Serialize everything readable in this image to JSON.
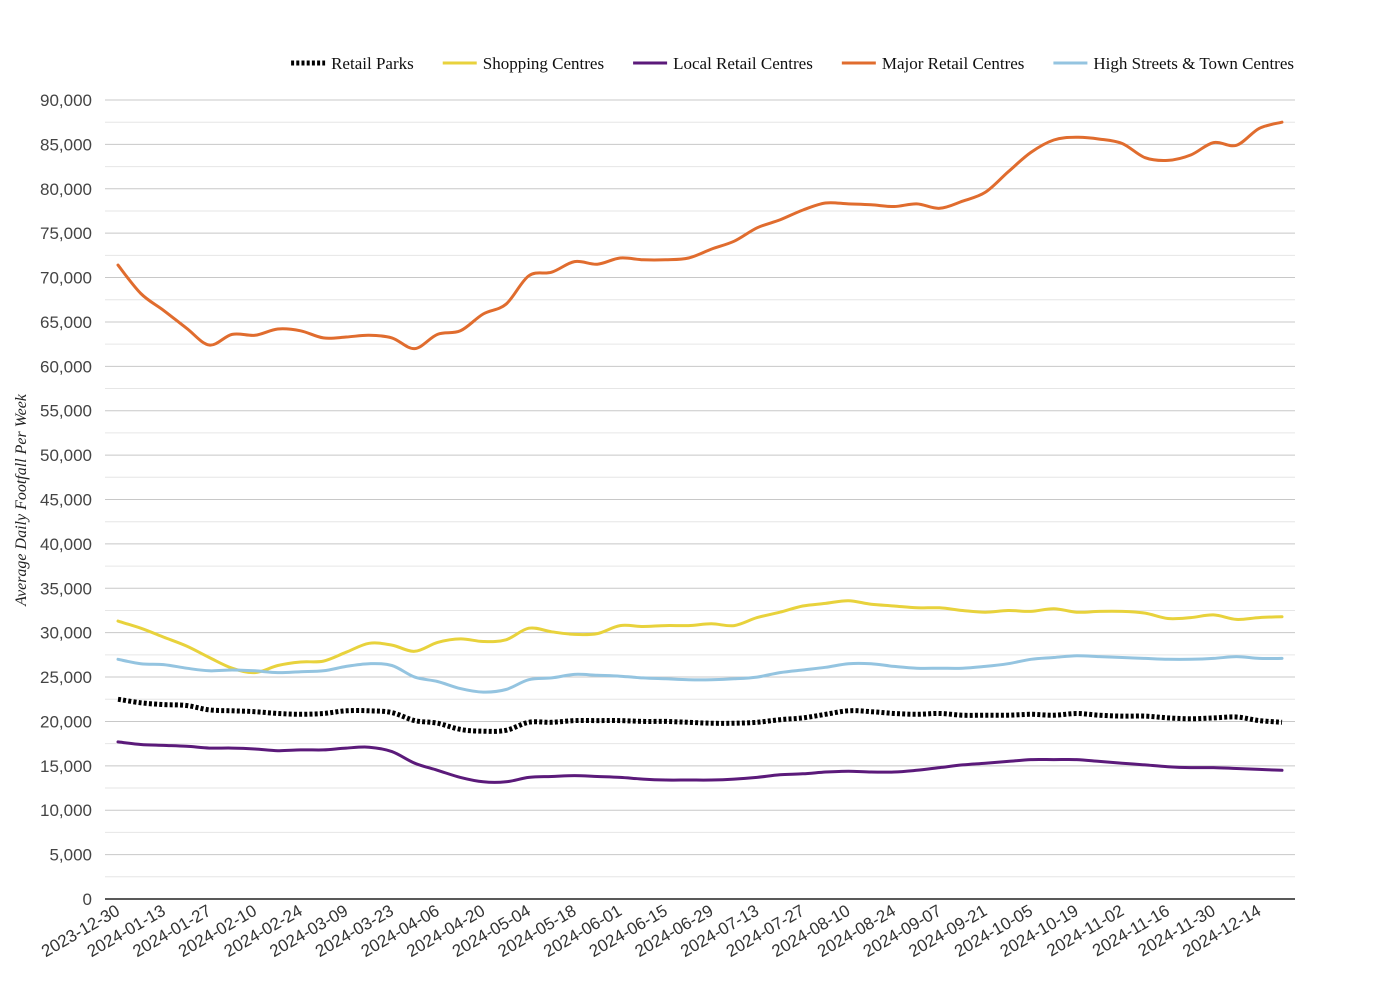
{
  "chart_data": {
    "type": "line",
    "title": "",
    "xlabel": "",
    "ylabel": "Average Daily Footfall Per Week",
    "ylim": [
      0,
      90000
    ],
    "grid": true,
    "legend_position": "top-right",
    "y_ticks": [
      "0",
      "5,000",
      "10,000",
      "15,000",
      "20,000",
      "25,000",
      "30,000",
      "35,000",
      "40,000",
      "45,000",
      "50,000",
      "55,000",
      "60,000",
      "65,000",
      "70,000",
      "75,000",
      "80,000",
      "85,000",
      "90,000"
    ],
    "x_tick_labels": [
      "2023-12-30",
      "2024-01-13",
      "2024-01-27",
      "2024-02-10",
      "2024-02-24",
      "2024-03-09",
      "2024-03-23",
      "2024-04-06",
      "2024-04-20",
      "2024-05-04",
      "2024-05-18",
      "2024-06-01",
      "2024-06-15",
      "2024-06-29",
      "2024-07-13",
      "2024-07-27",
      "2024-08-10",
      "2024-08-24",
      "2024-09-07",
      "2024-09-21",
      "2024-10-05",
      "2024-10-19",
      "2024-11-02",
      "2024-11-16",
      "2024-11-30",
      "2024-12-14"
    ],
    "x": [
      "2023-12-30",
      "2024-01-06",
      "2024-01-13",
      "2024-01-20",
      "2024-01-27",
      "2024-02-03",
      "2024-02-10",
      "2024-02-17",
      "2024-02-24",
      "2024-03-02",
      "2024-03-09",
      "2024-03-16",
      "2024-03-23",
      "2024-03-30",
      "2024-04-06",
      "2024-04-13",
      "2024-04-20",
      "2024-04-27",
      "2024-05-04",
      "2024-05-11",
      "2024-05-18",
      "2024-05-25",
      "2024-06-01",
      "2024-06-08",
      "2024-06-15",
      "2024-06-22",
      "2024-06-29",
      "2024-07-06",
      "2024-07-13",
      "2024-07-20",
      "2024-07-27",
      "2024-08-03",
      "2024-08-10",
      "2024-08-17",
      "2024-08-24",
      "2024-08-31",
      "2024-09-07",
      "2024-09-14",
      "2024-09-21",
      "2024-09-28",
      "2024-10-05",
      "2024-10-12",
      "2024-10-19",
      "2024-10-26",
      "2024-11-02",
      "2024-11-09",
      "2024-11-16",
      "2024-11-23",
      "2024-11-30",
      "2024-12-07",
      "2024-12-14",
      "2024-12-21"
    ],
    "series": [
      {
        "name": "Retail Parks",
        "color": "#000000",
        "dash": "dotted",
        "values": [
          22500,
          22100,
          21900,
          21800,
          21300,
          21200,
          21100,
          20900,
          20800,
          20900,
          21200,
          21200,
          21000,
          20100,
          19800,
          19100,
          18900,
          19000,
          19900,
          19900,
          20100,
          20100,
          20100,
          20000,
          20000,
          19900,
          19800,
          19800,
          19900,
          20200,
          20400,
          20800,
          21200,
          21100,
          20900,
          20800,
          20900,
          20700,
          20700,
          20700,
          20800,
          20700,
          20900,
          20700,
          20600,
          20600,
          20400,
          20300,
          20400,
          20500,
          20100,
          19900
        ]
      },
      {
        "name": "Shopping Centres",
        "color": "#e8d23c",
        "dash": "solid",
        "values": [
          31300,
          30500,
          29500,
          28500,
          27200,
          26000,
          25500,
          26300,
          26700,
          26800,
          27800,
          28800,
          28600,
          27900,
          28900,
          29300,
          29000,
          29200,
          30500,
          30100,
          29800,
          29900,
          30800,
          30700,
          30800,
          30800,
          31000,
          30800,
          31700,
          32300,
          33000,
          33300,
          33600,
          33200,
          33000,
          32800,
          32800,
          32500,
          32300,
          32500,
          32400,
          32700,
          32300,
          32400,
          32400,
          32200,
          31600,
          31700,
          32000,
          31500,
          31700,
          31800
        ]
      },
      {
        "name": "Local Retail Centres",
        "color": "#5b1a7a",
        "dash": "solid",
        "values": [
          17700,
          17400,
          17300,
          17200,
          17000,
          17000,
          16900,
          16700,
          16800,
          16800,
          17000,
          17100,
          16600,
          15300,
          14500,
          13700,
          13200,
          13200,
          13700,
          13800,
          13900,
          13800,
          13700,
          13500,
          13400,
          13400,
          13400,
          13500,
          13700,
          14000,
          14100,
          14300,
          14400,
          14300,
          14300,
          14500,
          14800,
          15100,
          15300,
          15500,
          15700,
          15700,
          15700,
          15500,
          15300,
          15100,
          14900,
          14800,
          14800,
          14700,
          14600,
          14500
        ]
      },
      {
        "name": "Major Retail Centres",
        "color": "#e06c2e",
        "dash": "solid",
        "values": [
          71400,
          68200,
          66300,
          64300,
          62400,
          63600,
          63500,
          64200,
          64000,
          63200,
          63300,
          63500,
          63200,
          62000,
          63600,
          64000,
          65900,
          67000,
          70200,
          70600,
          71800,
          71500,
          72200,
          72000,
          72000,
          72200,
          73200,
          74100,
          75600,
          76500,
          77600,
          78400,
          78300,
          78200,
          78000,
          78300,
          77800,
          78600,
          79600,
          81900,
          84100,
          85500,
          85800,
          85600,
          85100,
          83500,
          83200,
          83800,
          85200,
          84900,
          86800,
          87500
        ]
      },
      {
        "name": "High Streets & Town Centres",
        "color": "#94c4e0",
        "dash": "solid",
        "values": [
          27000,
          26500,
          26400,
          26000,
          25700,
          25800,
          25700,
          25500,
          25600,
          25700,
          26200,
          26500,
          26300,
          25000,
          24500,
          23700,
          23300,
          23600,
          24700,
          24900,
          25300,
          25200,
          25100,
          24900,
          24800,
          24700,
          24700,
          24800,
          25000,
          25500,
          25800,
          26100,
          26500,
          26500,
          26200,
          26000,
          26000,
          26000,
          26200,
          26500,
          27000,
          27200,
          27400,
          27300,
          27200,
          27100,
          27000,
          27000,
          27100,
          27300,
          27100,
          27100
        ]
      }
    ]
  }
}
